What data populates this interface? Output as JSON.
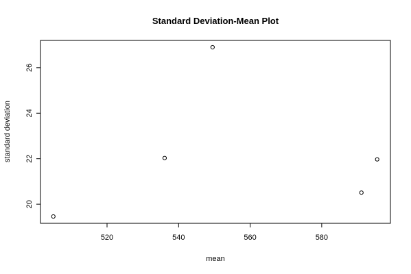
{
  "chart_data": {
    "type": "scatter",
    "title": "Standard Deviation-Mean Plot",
    "x_label": "mean",
    "y_label": "standard deviation",
    "x": [
      505.0,
      536.1,
      549.5,
      591.1,
      595.5
    ],
    "values": [
      19.46,
      22.03,
      26.9,
      20.51,
      21.97
    ],
    "xlim": [
      501.4,
      599.2
    ],
    "ylim": [
      19.16,
      27.2
    ],
    "xticks": [
      520,
      540,
      560,
      580
    ],
    "yticks": [
      20,
      22,
      24,
      26
    ],
    "color": "#000000"
  }
}
